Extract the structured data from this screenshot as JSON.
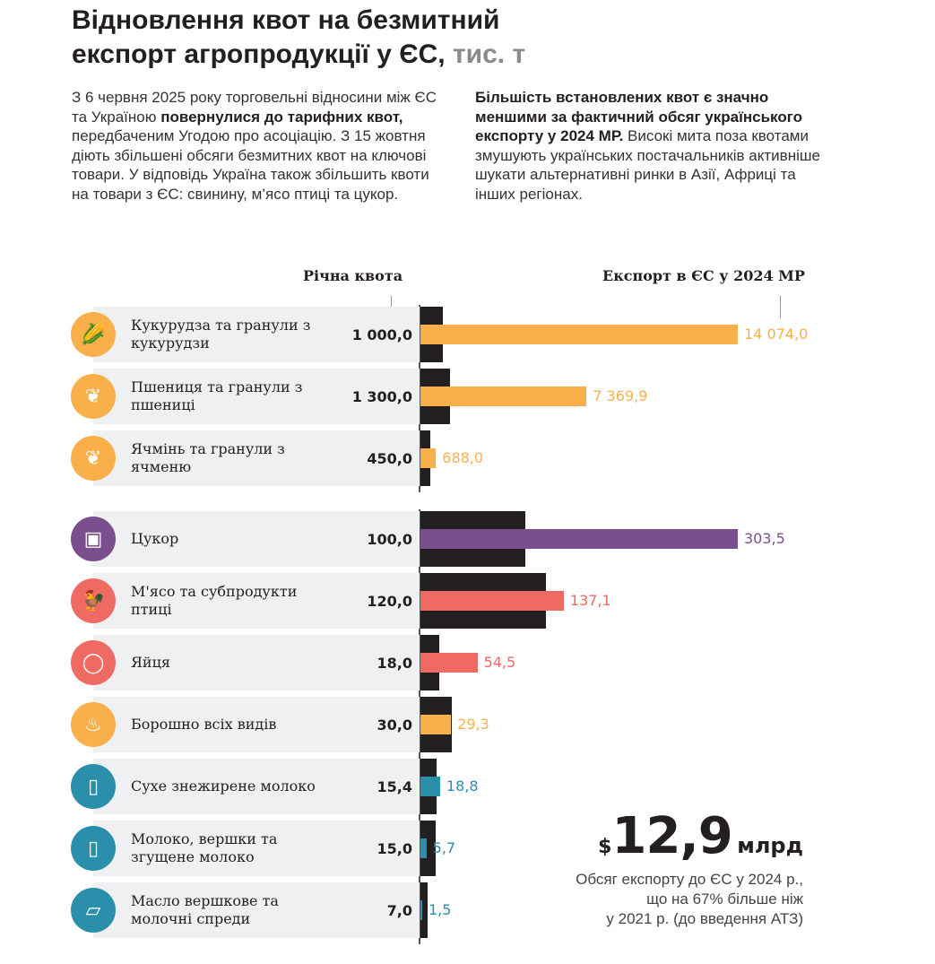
{
  "title": {
    "line1": "Відновлення квот на безмитний",
    "line2": "експорт агропродукції у ЄС,",
    "unit": "тис. т"
  },
  "intro_left": {
    "p1": "З 6 червня 2025 року торговельні відносини між ЄС та Україною ",
    "b1": "повернулися до тарифних квот,",
    "p2": " передбаченим Угодою про асоціацію. З 15 жовтня діють збільшені обсяги безмитних квот на ключові товари. У відповідь Україна також збільшить квоти на товари з ЄС: свинину, м’ясо птиці та цукор."
  },
  "intro_right": {
    "b1": "Більшість встановлених квот є значно меншими за фактичний обсяг українського експорту у 2024 МР.",
    "p1": " Високі мита поза квотами змушують українських постачальників активніше шукати альтернативні ринки в Азії, Африці та інших регіонах."
  },
  "chart_data": {
    "type": "bar",
    "headers": {
      "quota": "Річна квота",
      "export": "Експорт в ЄС у 2024 МР"
    },
    "series": [
      {
        "name": "Річна квота",
        "color": "#231f20"
      },
      {
        "name": "Експорт в ЄС у 2024 МР"
      }
    ],
    "groups": [
      {
        "items": [
          {
            "label": "Кукурудза та гранули з кукурудзи",
            "icon": "corn-icon",
            "color": "#f9b04b",
            "quota": 1000.0,
            "quota_label": "1 000,0",
            "export": 14074.0,
            "export_label": "14 074,0"
          },
          {
            "label": "Пшениця та гранули з пшениці",
            "icon": "wheat-icon",
            "color": "#f9b04b",
            "quota": 1300.0,
            "quota_label": "1 300,0",
            "export": 7369.9,
            "export_label": "7 369,9"
          },
          {
            "label": "Ячмінь та гранули з ячменю",
            "icon": "barley-icon",
            "color": "#f9b04b",
            "quota": 450.0,
            "quota_label": "450,0",
            "export": 688.0,
            "export_label": "688,0"
          }
        ]
      },
      {
        "items": [
          {
            "label": "Цукор",
            "icon": "sugar-cube-icon",
            "color": "#7b4e8e",
            "quota": 100.0,
            "quota_label": "100,0",
            "export": 303.5,
            "export_label": "303,5"
          },
          {
            "label": "М'ясо та субпродукти птиці",
            "icon": "chicken-icon",
            "color": "#ee6a63",
            "quota": 120.0,
            "quota_label": "120,0",
            "export": 137.1,
            "export_label": "137,1"
          },
          {
            "label": "Яйця",
            "icon": "egg-icon",
            "color": "#ee6a63",
            "quota": 18.0,
            "quota_label": "18,0",
            "export": 54.5,
            "export_label": "54,5"
          },
          {
            "label": "Борошно всіх видів",
            "icon": "flour-bag-icon",
            "color": "#f9b04b",
            "quota": 30.0,
            "quota_label": "30,0",
            "export": 29.3,
            "export_label": "29,3"
          },
          {
            "label": "Сухе знежирене молоко",
            "icon": "milk-can-icon",
            "color": "#2a8faa",
            "quota": 15.4,
            "quota_label": "15,4",
            "export": 18.8,
            "export_label": "18,8"
          },
          {
            "label": "Молоко, вершки та згущене молоко",
            "icon": "milk-jar-icon",
            "color": "#2a8faa",
            "quota": 15.0,
            "quota_label": "15,0",
            "export": 5.7,
            "export_label": "5,7"
          },
          {
            "label": "Масло вершкове та молочні спреди",
            "icon": "butter-icon",
            "color": "#2a8faa",
            "quota": 7.0,
            "quota_label": "7,0",
            "export": 1.5,
            "export_label": "1,5"
          }
        ]
      }
    ]
  },
  "summary": {
    "currency": "$",
    "value": "12,9",
    "unit": "млрд",
    "note1": "Обсяг експорту до ЄС у 2024 р.,",
    "note2": "що на 67% більше ніж",
    "note3": "у 2021 р. (до введення АТЗ)"
  }
}
